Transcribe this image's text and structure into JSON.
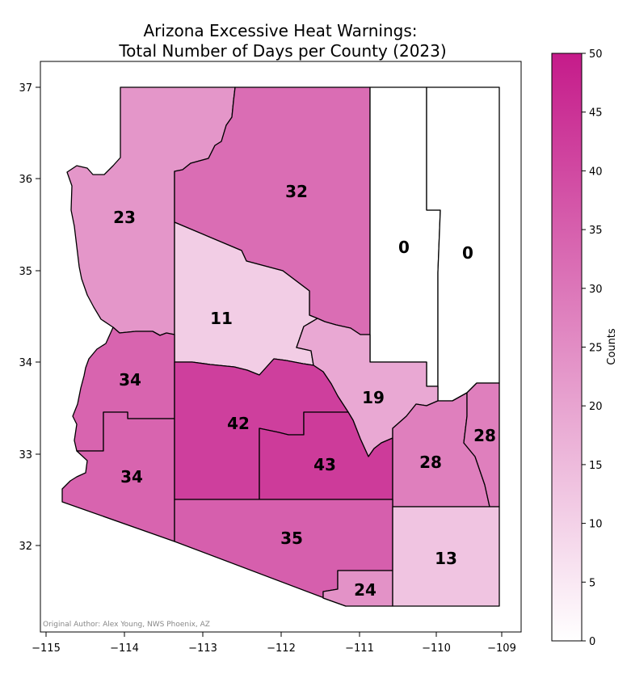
{
  "map": {
    "title_line1": "Arizona Excessive Heat Warnings:",
    "title_line2": "Total Number of Days per County (2023)",
    "credit": "Original Author: Alex Young, NWS Phoenix, AZ",
    "x_ticks": [
      "−115",
      "−114",
      "−113",
      "−112",
      "−111",
      "−110",
      "−109"
    ],
    "y_ticks": [
      "37",
      "36",
      "35",
      "34",
      "33",
      "32"
    ],
    "colorbar": {
      "label": "Counts",
      "ticks": [
        "0",
        "5",
        "10",
        "15",
        "20",
        "25",
        "30",
        "35",
        "40",
        "45",
        "50"
      ],
      "min": 0,
      "max": 50,
      "color_low": "#ffffff",
      "color_high": "#c51b8a"
    },
    "counties": [
      {
        "id": "mohave",
        "value": 23
      },
      {
        "id": "coconino",
        "value": 32
      },
      {
        "id": "navajo",
        "value": 0
      },
      {
        "id": "apache",
        "value": 0
      },
      {
        "id": "yavapai",
        "value": 11
      },
      {
        "id": "gila",
        "value": 19
      },
      {
        "id": "la-paz",
        "value": 34
      },
      {
        "id": "yuma",
        "value": 34
      },
      {
        "id": "maricopa",
        "value": 42
      },
      {
        "id": "pinal",
        "value": 43
      },
      {
        "id": "graham",
        "value": 28
      },
      {
        "id": "greenlee",
        "value": 28
      },
      {
        "id": "pima",
        "value": 35
      },
      {
        "id": "santa-cruz",
        "value": 24
      },
      {
        "id": "cochise",
        "value": 13
      }
    ]
  }
}
